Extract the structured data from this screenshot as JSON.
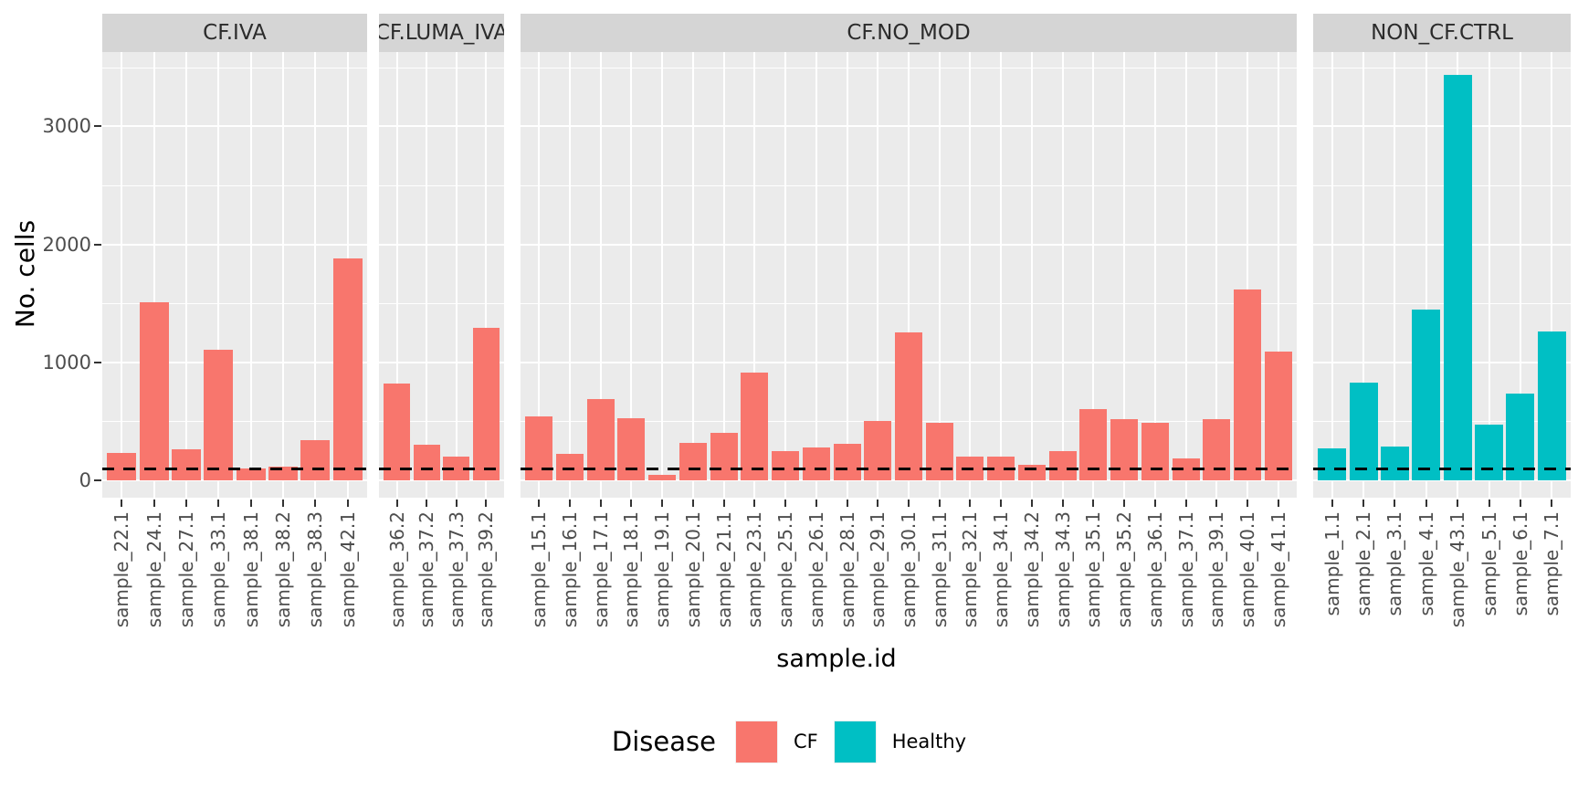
{
  "figure": {
    "colors": {
      "cf": "#F8766D",
      "healthy": "#00BFC4",
      "panel_background": "#EBEBEB",
      "strip_background": "#D5D5D5",
      "gridline": "#FFFFFF",
      "tick": "#333333",
      "axis_text": "#4D4D4D",
      "title_text": "#000000",
      "reference_line": "#000000"
    },
    "legend": {
      "title": "Disease",
      "entries": [
        {
          "label": "CF",
          "color": "#F8766D"
        },
        {
          "label": "Healthy",
          "color": "#00BFC4"
        }
      ],
      "position": "bottom"
    }
  },
  "chart_data": {
    "type": "bar",
    "title": "",
    "xlabel": "sample.id",
    "ylabel": "No. cells",
    "ylim": [
      0,
      3630
    ],
    "yticks": [
      0,
      1000,
      2000,
      3000
    ],
    "ytick_labels": [
      "0",
      "1000",
      "2000",
      "3000"
    ],
    "yticks_minor": [
      500,
      1500,
      2500,
      3500
    ],
    "grid": "on",
    "legend_position": "bottom",
    "reference_line": {
      "value": 100,
      "style": "dashed"
    },
    "facets": [
      {
        "label": "CF.IVA",
        "series": "CF",
        "categories": [
          "sample_22.1",
          "sample_24.1",
          "sample_27.1",
          "sample_33.1",
          "sample_38.1",
          "sample_38.2",
          "sample_38.3",
          "sample_42.1"
        ],
        "values": [
          230,
          1510,
          265,
          1110,
          100,
          115,
          340,
          1880
        ]
      },
      {
        "label": "CF.LUMA_IVA",
        "series": "CF",
        "categories": [
          "sample_36.2",
          "sample_37.2",
          "sample_37.3",
          "sample_39.2"
        ],
        "values": [
          820,
          300,
          200,
          1290
        ]
      },
      {
        "label": "CF.NO_MOD",
        "series": "CF",
        "categories": [
          "sample_15.1",
          "sample_16.1",
          "sample_17.1",
          "sample_18.1",
          "sample_19.1",
          "sample_20.1",
          "sample_21.1",
          "sample_23.1",
          "sample_25.1",
          "sample_26.1",
          "sample_28.1",
          "sample_29.1",
          "sample_30.1",
          "sample_31.1",
          "sample_32.1",
          "sample_34.1",
          "sample_34.2",
          "sample_34.3",
          "sample_35.1",
          "sample_35.2",
          "sample_36.1",
          "sample_37.1",
          "sample_39.1",
          "sample_40.1",
          "sample_41.1"
        ],
        "values": [
          540,
          225,
          690,
          525,
          50,
          320,
          400,
          910,
          245,
          280,
          310,
          500,
          1255,
          490,
          205,
          200,
          130,
          250,
          600,
          515,
          490,
          185,
          520,
          1620,
          1090
        ]
      },
      {
        "label": "NON_CF.CTRL",
        "series": "Healthy",
        "categories": [
          "sample_1.1",
          "sample_2.1",
          "sample_3.1",
          "sample_4.1",
          "sample_43.1",
          "sample_5.1",
          "sample_6.1",
          "sample_7.1"
        ],
        "values": [
          270,
          830,
          290,
          1450,
          3435,
          470,
          735,
          1265
        ]
      }
    ]
  }
}
